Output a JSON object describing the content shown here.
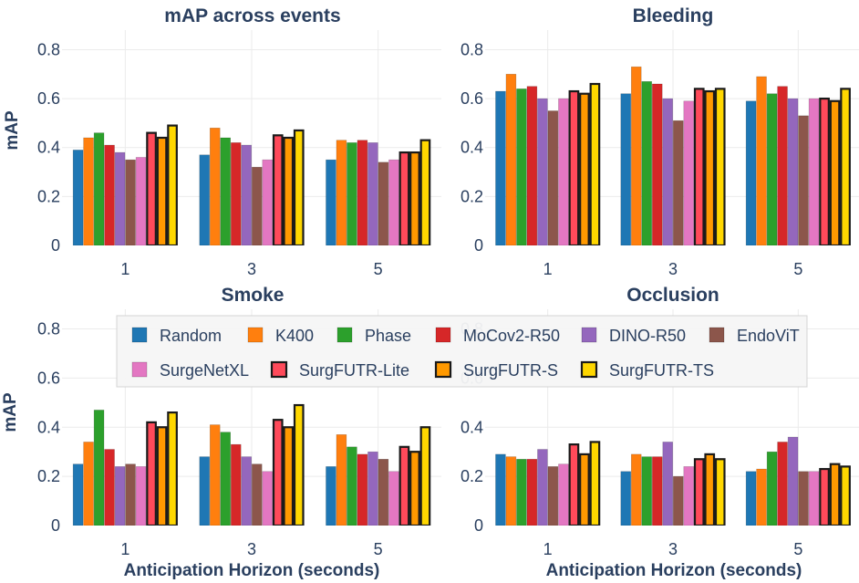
{
  "legend": {
    "placement": "center",
    "entries": [
      {
        "name": "Random",
        "color": "#1f77b4",
        "outline": false
      },
      {
        "name": "K400",
        "color": "#ff7f0e",
        "outline": false
      },
      {
        "name": "Phase",
        "color": "#2ca02c",
        "outline": false
      },
      {
        "name": "MoCov2-R50",
        "color": "#d62728",
        "outline": false
      },
      {
        "name": "DINO-R50",
        "color": "#9467bd",
        "outline": false
      },
      {
        "name": "EndoViT",
        "color": "#8c564b",
        "outline": false
      },
      {
        "name": "SurgeNetXL",
        "color": "#e377c2",
        "outline": false
      },
      {
        "name": "SurgFUTR-Lite",
        "color": "#ff4a5a",
        "outline": true
      },
      {
        "name": "SurgFUTR-S",
        "color": "#ff9900",
        "outline": true
      },
      {
        "name": "SurgFUTR-TS",
        "color": "#ffd700",
        "outline": true
      }
    ]
  },
  "chart_data": [
    {
      "type": "bar",
      "title": "mAP across events",
      "xlabel": "",
      "ylabel": "mAP",
      "ylim": [
        0,
        0.88
      ],
      "yticks": [
        "0",
        "0.2",
        "0.4",
        "0.6",
        "0.8"
      ],
      "categories": [
        "1",
        "3",
        "5"
      ],
      "grid": true,
      "series": [
        {
          "name": "Random",
          "values": [
            0.39,
            0.37,
            0.35
          ]
        },
        {
          "name": "K400",
          "values": [
            0.44,
            0.48,
            0.43
          ]
        },
        {
          "name": "Phase",
          "values": [
            0.46,
            0.44,
            0.42
          ]
        },
        {
          "name": "MoCov2-R50",
          "values": [
            0.41,
            0.42,
            0.43
          ]
        },
        {
          "name": "DINO-R50",
          "values": [
            0.38,
            0.41,
            0.42
          ]
        },
        {
          "name": "EndoViT",
          "values": [
            0.35,
            0.32,
            0.34
          ]
        },
        {
          "name": "SurgeNetXL",
          "values": [
            0.36,
            0.35,
            0.35
          ]
        },
        {
          "name": "SurgFUTR-Lite",
          "values": [
            0.46,
            0.45,
            0.38
          ]
        },
        {
          "name": "SurgFUTR-S",
          "values": [
            0.44,
            0.44,
            0.38
          ]
        },
        {
          "name": "SurgFUTR-TS",
          "values": [
            0.49,
            0.47,
            0.43
          ]
        }
      ]
    },
    {
      "type": "bar",
      "title": "Bleeding",
      "xlabel": "",
      "ylabel": "",
      "ylim": [
        0,
        0.88
      ],
      "yticks": [
        "0",
        "0.2",
        "0.4",
        "0.6",
        "0.8"
      ],
      "categories": [
        "1",
        "3",
        "5"
      ],
      "grid": true,
      "series": [
        {
          "name": "Random",
          "values": [
            0.63,
            0.62,
            0.59
          ]
        },
        {
          "name": "K400",
          "values": [
            0.7,
            0.73,
            0.69
          ]
        },
        {
          "name": "Phase",
          "values": [
            0.64,
            0.67,
            0.62
          ]
        },
        {
          "name": "MoCov2-R50",
          "values": [
            0.65,
            0.66,
            0.65
          ]
        },
        {
          "name": "DINO-R50",
          "values": [
            0.6,
            0.6,
            0.6
          ]
        },
        {
          "name": "EndoViT",
          "values": [
            0.55,
            0.51,
            0.53
          ]
        },
        {
          "name": "SurgeNetXL",
          "values": [
            0.6,
            0.59,
            0.6
          ]
        },
        {
          "name": "SurgFUTR-Lite",
          "values": [
            0.63,
            0.64,
            0.6
          ]
        },
        {
          "name": "SurgFUTR-S",
          "values": [
            0.62,
            0.63,
            0.59
          ]
        },
        {
          "name": "SurgFUTR-TS",
          "values": [
            0.66,
            0.64,
            0.64
          ]
        }
      ]
    },
    {
      "type": "bar",
      "title": "Smoke",
      "xlabel": "Anticipation Horizon (seconds)",
      "ylabel": "mAP",
      "ylim": [
        0,
        0.88
      ],
      "yticks": [
        "0",
        "0.2",
        "0.4",
        "0.6",
        "0.8"
      ],
      "categories": [
        "1",
        "3",
        "5"
      ],
      "grid": true,
      "series": [
        {
          "name": "Random",
          "values": [
            0.25,
            0.28,
            0.24
          ]
        },
        {
          "name": "K400",
          "values": [
            0.34,
            0.41,
            0.37
          ]
        },
        {
          "name": "Phase",
          "values": [
            0.47,
            0.38,
            0.32
          ]
        },
        {
          "name": "MoCov2-R50",
          "values": [
            0.31,
            0.33,
            0.29
          ]
        },
        {
          "name": "DINO-R50",
          "values": [
            0.24,
            0.28,
            0.3
          ]
        },
        {
          "name": "EndoViT",
          "values": [
            0.25,
            0.25,
            0.27
          ]
        },
        {
          "name": "SurgeNetXL",
          "values": [
            0.24,
            0.22,
            0.22
          ]
        },
        {
          "name": "SurgFUTR-Lite",
          "values": [
            0.42,
            0.43,
            0.32
          ]
        },
        {
          "name": "SurgFUTR-S",
          "values": [
            0.4,
            0.4,
            0.3
          ]
        },
        {
          "name": "SurgFUTR-TS",
          "values": [
            0.46,
            0.49,
            0.4
          ]
        }
      ]
    },
    {
      "type": "bar",
      "title": "Occlusion",
      "xlabel": "Anticipation Horizon (seconds)",
      "ylabel": "",
      "ylim": [
        0,
        0.88
      ],
      "yticks": [
        "0",
        "0.2",
        "0.4",
        "0.6",
        "0.8"
      ],
      "categories": [
        "1",
        "3",
        "5"
      ],
      "grid": true,
      "series": [
        {
          "name": "Random",
          "values": [
            0.29,
            0.22,
            0.22
          ]
        },
        {
          "name": "K400",
          "values": [
            0.28,
            0.29,
            0.23
          ]
        },
        {
          "name": "Phase",
          "values": [
            0.27,
            0.28,
            0.3
          ]
        },
        {
          "name": "MoCov2-R50",
          "values": [
            0.27,
            0.28,
            0.34
          ]
        },
        {
          "name": "DINO-R50",
          "values": [
            0.31,
            0.34,
            0.36
          ]
        },
        {
          "name": "EndoViT",
          "values": [
            0.24,
            0.2,
            0.22
          ]
        },
        {
          "name": "SurgeNetXL",
          "values": [
            0.25,
            0.24,
            0.22
          ]
        },
        {
          "name": "SurgFUTR-Lite",
          "values": [
            0.33,
            0.27,
            0.23
          ]
        },
        {
          "name": "SurgFUTR-S",
          "values": [
            0.29,
            0.29,
            0.25
          ]
        },
        {
          "name": "SurgFUTR-TS",
          "values": [
            0.34,
            0.27,
            0.24
          ]
        }
      ]
    }
  ]
}
